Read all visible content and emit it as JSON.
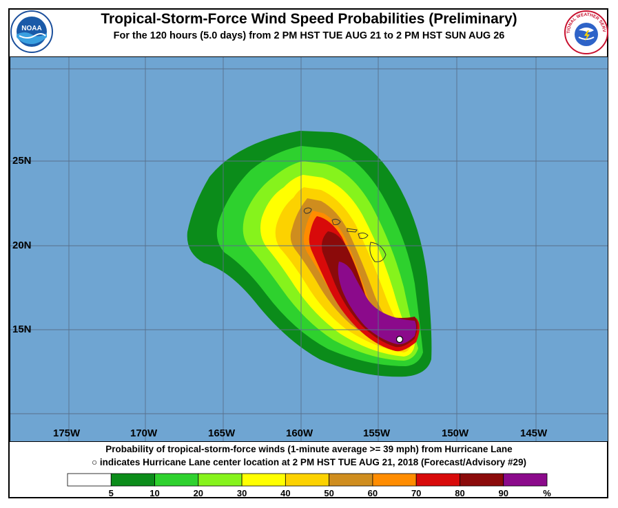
{
  "header": {
    "title": "Tropical-Storm-Force Wind Speed Probabilities (Preliminary)",
    "subtitle": "For the 120 hours (5.0 days) from 2 PM HST TUE AUG 21 to 2 PM HST SUN AUG 26"
  },
  "logos": {
    "left": "noaa-logo",
    "left_text": "NOAA",
    "left_ring_text": "NATIONAL OCEANIC AND ATMOSPHERIC ADMINISTRATION",
    "right": "nws-logo",
    "right_text": "NATIONAL WEATHER SERVICE"
  },
  "map": {
    "ocean_color": "#6fa5d2",
    "grid_color": "#59708a",
    "lat_labels": [
      "25N",
      "20N",
      "15N"
    ],
    "lon_labels": [
      "175W",
      "170W",
      "165W",
      "160W",
      "155W",
      "150W",
      "145W"
    ],
    "storm_name": "Hurricane Lane",
    "islands_label": "Hawaiian Islands",
    "center_marker": "circle-marker"
  },
  "footer": {
    "line1": "Probability of tropical-storm-force winds (1-minute average >= 39 mph) from Hurricane Lane",
    "line2": "○ indicates Hurricane Lane center location at 2 PM HST TUE AUG 21, 2018 (Forecast/Advisory #29)"
  },
  "legend": {
    "labels": [
      "5",
      "10",
      "20",
      "30",
      "40",
      "50",
      "60",
      "70",
      "80",
      "90",
      "%"
    ],
    "bins": [
      {
        "range": "<5",
        "color": "#ffffff"
      },
      {
        "range": "5-10",
        "color": "#0b8c1a"
      },
      {
        "range": "10-20",
        "color": "#2ed12e"
      },
      {
        "range": "20-30",
        "color": "#86f31c"
      },
      {
        "range": "30-40",
        "color": "#ffff00"
      },
      {
        "range": "40-50",
        "color": "#fcd200"
      },
      {
        "range": "50-60",
        "color": "#cf8d1e"
      },
      {
        "range": "60-70",
        "color": "#ff8c00"
      },
      {
        "range": "70-80",
        "color": "#d80a0a"
      },
      {
        "range": "80-90",
        "color": "#8b0a0a"
      },
      {
        "range": "90-100",
        "color": "#8b0a8b"
      }
    ]
  }
}
